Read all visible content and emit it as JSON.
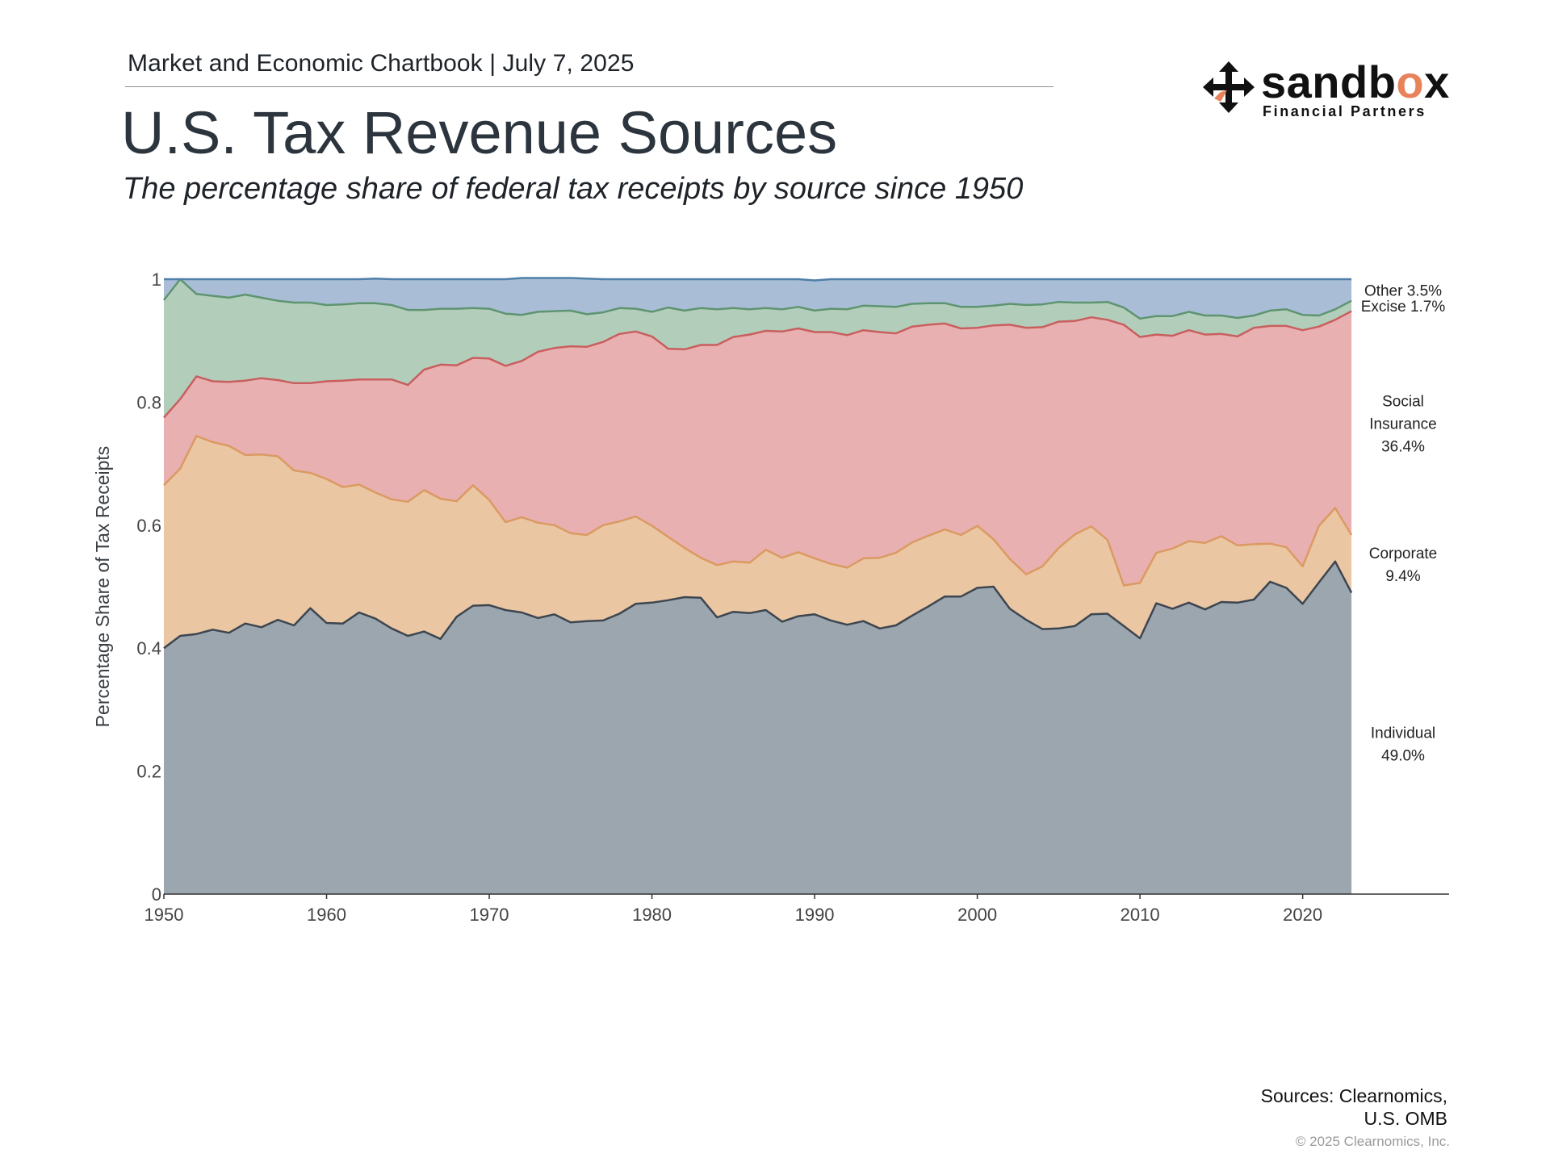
{
  "header": {
    "chartbook": "Market and Economic Chartbook | July 7, 2025",
    "title": "U.S. Tax Revenue Sources",
    "subtitle": "The percentage share of federal tax receipts by source since 1950"
  },
  "logo": {
    "word_prefix": "sandb",
    "word_accent": "o",
    "word_suffix": "x",
    "tagline": "Financial Partners",
    "accent_color": "#e8825a",
    "icon": "four-way-arrows-icon"
  },
  "footer": {
    "sources_line1": "Sources: Clearnomics,",
    "sources_line2": "U.S. OMB",
    "copyright": "© 2025 Clearnomics, Inc."
  },
  "chart_data": {
    "type": "area",
    "stacked": true,
    "ylabel": "Percentage Share of Tax Receipts",
    "ylim": [
      0,
      1
    ],
    "xlim": [
      1950,
      2029
    ],
    "y_ticks": [
      "0",
      "0.2",
      "0.4",
      "0.6",
      "0.8",
      "1"
    ],
    "x_ticks": [
      "1950",
      "1960",
      "1970",
      "1980",
      "1990",
      "2000",
      "2010",
      "2020"
    ],
    "x": [
      1950,
      1951,
      1952,
      1953,
      1954,
      1955,
      1956,
      1957,
      1958,
      1959,
      1960,
      1961,
      1962,
      1963,
      1964,
      1965,
      1966,
      1967,
      1968,
      1969,
      1970,
      1971,
      1972,
      1973,
      1974,
      1975,
      1976,
      1977,
      1978,
      1979,
      1980,
      1981,
      1982,
      1983,
      1984,
      1985,
      1986,
      1987,
      1988,
      1989,
      1990,
      1991,
      1992,
      1993,
      1994,
      1995,
      1996,
      1997,
      1998,
      1999,
      2000,
      2001,
      2002,
      2003,
      2004,
      2005,
      2006,
      2007,
      2008,
      2009,
      2010,
      2011,
      2012,
      2013,
      2014,
      2015,
      2016,
      2017,
      2018,
      2019,
      2020,
      2021,
      2022,
      2023
    ],
    "series": [
      {
        "name": "Individual",
        "label_lines": [
          "Individual",
          "49.0%"
        ],
        "fill": "#9ca6af",
        "stroke": "#3d4650",
        "values": [
          0.4,
          0.42,
          0.423,
          0.43,
          0.425,
          0.44,
          0.434,
          0.446,
          0.437,
          0.465,
          0.441,
          0.44,
          0.458,
          0.448,
          0.432,
          0.42,
          0.427,
          0.415,
          0.451,
          0.469,
          0.47,
          0.462,
          0.458,
          0.449,
          0.455,
          0.442,
          0.444,
          0.445,
          0.456,
          0.472,
          0.474,
          0.478,
          0.483,
          0.482,
          0.45,
          0.459,
          0.457,
          0.462,
          0.443,
          0.452,
          0.455,
          0.445,
          0.438,
          0.444,
          0.432,
          0.437,
          0.453,
          0.468,
          0.484,
          0.484,
          0.498,
          0.5,
          0.464,
          0.446,
          0.431,
          0.432,
          0.436,
          0.455,
          0.456,
          0.436,
          0.416,
          0.473,
          0.464,
          0.474,
          0.463,
          0.475,
          0.474,
          0.479,
          0.508,
          0.498,
          0.472,
          0.507,
          0.541,
          0.49
        ]
      },
      {
        "name": "Corporate",
        "label_lines": [
          "Corporate",
          "9.4%"
        ],
        "fill": "#eac6a3",
        "stroke": "#db9a62",
        "values": [
          0.265,
          0.272,
          0.322,
          0.305,
          0.304,
          0.274,
          0.281,
          0.266,
          0.252,
          0.22,
          0.234,
          0.222,
          0.208,
          0.205,
          0.21,
          0.218,
          0.23,
          0.228,
          0.188,
          0.196,
          0.171,
          0.143,
          0.155,
          0.155,
          0.145,
          0.145,
          0.14,
          0.155,
          0.15,
          0.142,
          0.125,
          0.103,
          0.08,
          0.065,
          0.085,
          0.082,
          0.082,
          0.098,
          0.104,
          0.104,
          0.091,
          0.092,
          0.093,
          0.102,
          0.115,
          0.118,
          0.119,
          0.115,
          0.109,
          0.1,
          0.101,
          0.077,
          0.081,
          0.074,
          0.102,
          0.131,
          0.149,
          0.143,
          0.12,
          0.066,
          0.09,
          0.082,
          0.098,
          0.1,
          0.108,
          0.107,
          0.093,
          0.09,
          0.062,
          0.066,
          0.061,
          0.092,
          0.087,
          0.094
        ]
      },
      {
        "name": "Social Insurance",
        "label_lines": [
          "Social",
          "Insurance",
          "36.4%"
        ],
        "fill": "#e8b0b0",
        "stroke": "#c85f5f",
        "values": [
          0.11,
          0.113,
          0.097,
          0.099,
          0.104,
          0.121,
          0.124,
          0.124,
          0.142,
          0.146,
          0.159,
          0.173,
          0.171,
          0.184,
          0.195,
          0.19,
          0.196,
          0.218,
          0.221,
          0.207,
          0.23,
          0.254,
          0.254,
          0.278,
          0.288,
          0.304,
          0.306,
          0.298,
          0.305,
          0.301,
          0.308,
          0.306,
          0.323,
          0.346,
          0.358,
          0.365,
          0.371,
          0.356,
          0.368,
          0.364,
          0.368,
          0.377,
          0.378,
          0.371,
          0.367,
          0.357,
          0.351,
          0.343,
          0.335,
          0.336,
          0.322,
          0.348,
          0.381,
          0.401,
          0.389,
          0.368,
          0.347,
          0.34,
          0.358,
          0.424,
          0.4,
          0.355,
          0.346,
          0.343,
          0.339,
          0.329,
          0.34,
          0.352,
          0.354,
          0.36,
          0.384,
          0.324,
          0.306,
          0.364
        ]
      },
      {
        "name": "Excise",
        "label_lines": [
          "Excise 1.7%"
        ],
        "fill": "#b3cdbb",
        "stroke": "#5f9470",
        "values": [
          0.191,
          0.195,
          0.134,
          0.139,
          0.137,
          0.14,
          0.131,
          0.129,
          0.131,
          0.131,
          0.124,
          0.124,
          0.124,
          0.124,
          0.121,
          0.122,
          0.097,
          0.091,
          0.092,
          0.081,
          0.081,
          0.085,
          0.075,
          0.065,
          0.06,
          0.058,
          0.053,
          0.048,
          0.042,
          0.037,
          0.04,
          0.067,
          0.063,
          0.06,
          0.058,
          0.047,
          0.041,
          0.037,
          0.036,
          0.035,
          0.035,
          0.038,
          0.042,
          0.04,
          0.042,
          0.043,
          0.037,
          0.035,
          0.033,
          0.035,
          0.034,
          0.032,
          0.034,
          0.037,
          0.037,
          0.032,
          0.03,
          0.024,
          0.029,
          0.028,
          0.03,
          0.03,
          0.032,
          0.03,
          0.031,
          0.03,
          0.03,
          0.02,
          0.025,
          0.027,
          0.025,
          0.018,
          0.017,
          0.017
        ]
      },
      {
        "name": "Other",
        "label_lines": [
          "Other 3.5%"
        ],
        "fill": "#a9bed6",
        "stroke": "#4f7fa8",
        "values": [
          0.034,
          0.0,
          0.024,
          0.027,
          0.03,
          0.025,
          0.03,
          0.035,
          0.038,
          0.038,
          0.042,
          0.041,
          0.039,
          0.04,
          0.042,
          0.05,
          0.05,
          0.048,
          0.048,
          0.047,
          0.048,
          0.056,
          0.06,
          0.055,
          0.054,
          0.053,
          0.058,
          0.054,
          0.047,
          0.048,
          0.053,
          0.046,
          0.051,
          0.047,
          0.049,
          0.047,
          0.049,
          0.047,
          0.049,
          0.045,
          0.049,
          0.048,
          0.049,
          0.043,
          0.044,
          0.045,
          0.04,
          0.039,
          0.039,
          0.045,
          0.045,
          0.043,
          0.04,
          0.042,
          0.041,
          0.037,
          0.038,
          0.038,
          0.037,
          0.046,
          0.064,
          0.06,
          0.06,
          0.053,
          0.059,
          0.059,
          0.063,
          0.059,
          0.051,
          0.049,
          0.058,
          0.059,
          0.049,
          0.035
        ]
      }
    ]
  }
}
